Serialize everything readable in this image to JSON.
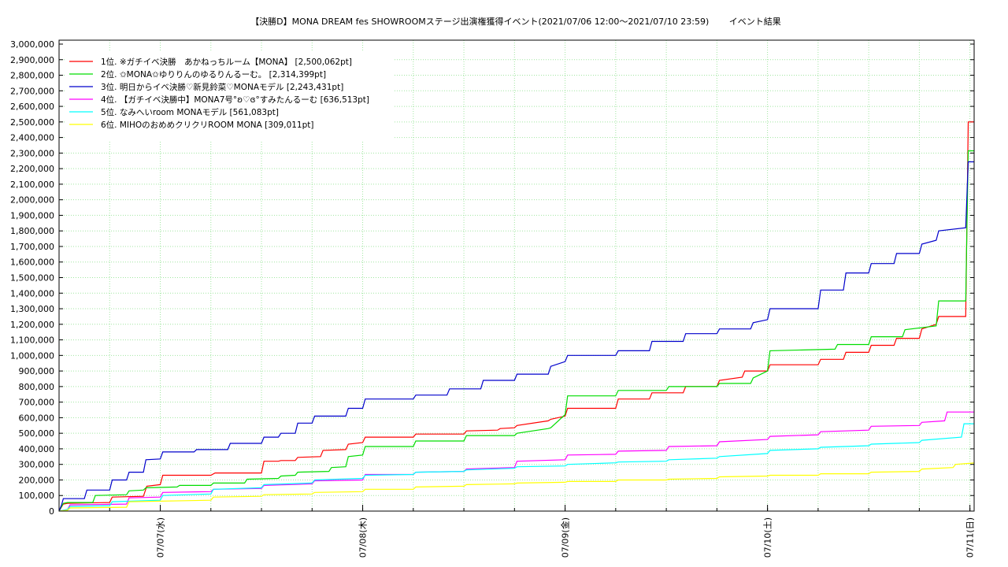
{
  "chart_data": {
    "type": "line",
    "title": "【決勝D】MONA DREAM fes SHOWROOMステージ出演権獲得イベント(2021/07/06 12:00～2021/07/10 23:59)　　 イベント結果",
    "xlabel": "",
    "ylabel": "",
    "ylim": [
      0,
      3000000
    ],
    "y_ticks": [
      "0",
      "100,000",
      "200,000",
      "300,000",
      "400,000",
      "500,000",
      "600,000",
      "700,000",
      "800,000",
      "900,000",
      "1,000,000",
      "1,100,000",
      "1,200,000",
      "1,300,000",
      "1,400,000",
      "1,500,000",
      "1,600,000",
      "1,700,000",
      "1,800,000",
      "1,900,000",
      "2,000,000",
      "2,100,000",
      "2,200,000",
      "2,300,000",
      "2,400,000",
      "2,500,000",
      "2,600,000",
      "2,700,000",
      "2,800,000",
      "2,900,000",
      "3,000,000"
    ],
    "x_range_hours": [
      12,
      120.5
    ],
    "x_ticks": [
      {
        "hour": 24,
        "label": "07/07(水)"
      },
      {
        "hour": 48,
        "label": "07/08(木)"
      },
      {
        "hour": 72,
        "label": "07/09(金)"
      },
      {
        "hour": 96,
        "label": "07/10(土)"
      },
      {
        "hour": 120,
        "label": "07/11(日)"
      }
    ],
    "grid": true,
    "legend_position": "top-left",
    "series": [
      {
        "name": "1位. ※ガチイベ決勝　あかねっちルーム【MONA】 [2,500,062pt]",
        "color": "#ff0000",
        "x": [
          12,
          12.5,
          13,
          18,
          18.3,
          22,
          22.4,
          24,
          24.3,
          30,
          30.5,
          36,
          36.3,
          38,
          38.3,
          40,
          40.3,
          43,
          43.3,
          46,
          46.3,
          48,
          48.3,
          54,
          54.3,
          60,
          60.3,
          64,
          64.3,
          66,
          66.3,
          70,
          70.3,
          72,
          72.3,
          78,
          78.3,
          82,
          82.3,
          86,
          86.3,
          90,
          90.3,
          93,
          93.3,
          96,
          96.3,
          102,
          102.3,
          105,
          105.3,
          108,
          108.3,
          111,
          111.3,
          114,
          114.3,
          116,
          116.3,
          119.5,
          119.8,
          120.5
        ],
        "y": [
          0,
          45000,
          50000,
          55000,
          90000,
          95000,
          160000,
          170000,
          230000,
          230000,
          245000,
          245000,
          320000,
          320000,
          325000,
          325000,
          345000,
          350000,
          390000,
          395000,
          430000,
          440000,
          475000,
          475000,
          495000,
          495000,
          515000,
          520000,
          530000,
          535000,
          550000,
          580000,
          590000,
          610000,
          660000,
          660000,
          720000,
          720000,
          760000,
          760000,
          800000,
          800000,
          840000,
          860000,
          900000,
          900000,
          940000,
          940000,
          975000,
          975000,
          1020000,
          1020000,
          1065000,
          1065000,
          1110000,
          1110000,
          1170000,
          1200000,
          1250000,
          1250000,
          2500062,
          2500062
        ]
      },
      {
        "name": "2位. ✩MONA✩ゆりりんのゆるりんるーむ。 [2,314,399pt]",
        "color": "#00dd00",
        "x": [
          12,
          12.5,
          13,
          16,
          16.3,
          20,
          20.3,
          22,
          22.3,
          26,
          26.3,
          30,
          30.3,
          34,
          34.3,
          38,
          38.3,
          40,
          40.3,
          44,
          44.3,
          46,
          46.3,
          48,
          48.3,
          54,
          54.3,
          60,
          60.3,
          66,
          66.3,
          70,
          70.3,
          72,
          72.3,
          78,
          78.3,
          84,
          84.3,
          90,
          90.3,
          94,
          94.3,
          96,
          96.3,
          104,
          104.3,
          108,
          108.3,
          112,
          112.3,
          116,
          116.3,
          119.5,
          119.8,
          120.5
        ],
        "y": [
          0,
          50000,
          55000,
          55000,
          100000,
          105000,
          130000,
          135000,
          150000,
          155000,
          165000,
          165000,
          180000,
          180000,
          205000,
          210000,
          225000,
          230000,
          250000,
          255000,
          280000,
          285000,
          350000,
          360000,
          415000,
          415000,
          450000,
          450000,
          485000,
          485000,
          500000,
          530000,
          535000,
          620000,
          740000,
          740000,
          775000,
          775000,
          800000,
          800000,
          820000,
          820000,
          855000,
          900000,
          1030000,
          1040000,
          1070000,
          1070000,
          1120000,
          1120000,
          1165000,
          1190000,
          1350000,
          1350000,
          2314399,
          2314399
        ]
      },
      {
        "name": "3位. 明日からイベ決勝♡新見鈴菜♡MONAモデル [2,243,431pt]",
        "color": "#0000cc",
        "x": [
          12,
          12.3,
          12.5,
          15,
          15.3,
          18,
          18.3,
          20,
          20.3,
          22,
          22.3,
          24,
          24.3,
          28,
          28.3,
          32,
          32.3,
          36,
          36.3,
          38,
          38.3,
          40,
          40.3,
          42,
          42.3,
          46,
          46.3,
          48,
          48.3,
          54,
          54.3,
          58,
          58.3,
          62,
          62.3,
          66,
          66.3,
          70,
          70.3,
          72,
          72.3,
          78,
          78.3,
          82,
          82.3,
          86,
          86.3,
          90,
          90.3,
          94,
          94.3,
          96,
          96.3,
          102,
          102.3,
          105,
          105.3,
          108,
          108.3,
          111,
          111.3,
          114,
          114.3,
          116,
          116.3,
          119.5,
          119.8,
          120.5
        ],
        "y": [
          0,
          40000,
          80000,
          80000,
          135000,
          135000,
          200000,
          200000,
          250000,
          250000,
          330000,
          335000,
          380000,
          380000,
          395000,
          395000,
          435000,
          435000,
          475000,
          475000,
          500000,
          500000,
          565000,
          565000,
          610000,
          610000,
          660000,
          660000,
          720000,
          720000,
          745000,
          745000,
          785000,
          785000,
          840000,
          840000,
          880000,
          880000,
          930000,
          960000,
          1000000,
          1000000,
          1030000,
          1030000,
          1090000,
          1090000,
          1140000,
          1140000,
          1170000,
          1170000,
          1210000,
          1230000,
          1300000,
          1300000,
          1420000,
          1420000,
          1530000,
          1530000,
          1590000,
          1590000,
          1655000,
          1655000,
          1715000,
          1740000,
          1800000,
          1820000,
          2243431,
          2243431
        ]
      },
      {
        "name": "4位. 【ガチイベ決勝中】MONA7号°ʚ♡ɞ°すみたんるーむ [636,513pt]",
        "color": "#ff00ff",
        "x": [
          12,
          13,
          13.3,
          20,
          20.3,
          24,
          24.3,
          30,
          30.3,
          36,
          36.3,
          42,
          42.3,
          48,
          48.3,
          54,
          54.3,
          60,
          60.3,
          66,
          66.3,
          72,
          72.3,
          78,
          78.3,
          84,
          84.3,
          90,
          90.3,
          96,
          96.3,
          102,
          102.3,
          108,
          108.3,
          114,
          114.3,
          117,
          117.3,
          120.5
        ],
        "y": [
          0,
          10000,
          40000,
          45000,
          85000,
          90000,
          120000,
          125000,
          140000,
          145000,
          165000,
          175000,
          195000,
          200000,
          235000,
          235000,
          250000,
          255000,
          270000,
          280000,
          320000,
          330000,
          360000,
          365000,
          385000,
          390000,
          415000,
          420000,
          445000,
          460000,
          480000,
          490000,
          510000,
          520000,
          545000,
          550000,
          570000,
          580000,
          636513,
          636513
        ]
      },
      {
        "name": "5位. なみへいroom MONAモデル [561,083pt]",
        "color": "#00ffff",
        "x": [
          12,
          13,
          13.3,
          18,
          18.3,
          24,
          24.3,
          30,
          30.3,
          36,
          36.3,
          42,
          42.3,
          48,
          48.3,
          54,
          54.3,
          60,
          60.3,
          66,
          66.3,
          72,
          72.3,
          78,
          78.3,
          84,
          84.3,
          90,
          90.3,
          96,
          96.3,
          102,
          102.3,
          108,
          108.3,
          114,
          114.3,
          119,
          119.3,
          120.5
        ],
        "y": [
          0,
          10000,
          30000,
          35000,
          60000,
          70000,
          100000,
          110000,
          140000,
          150000,
          170000,
          180000,
          200000,
          210000,
          230000,
          235000,
          250000,
          255000,
          265000,
          275000,
          285000,
          290000,
          300000,
          310000,
          315000,
          320000,
          330000,
          340000,
          350000,
          370000,
          390000,
          400000,
          410000,
          420000,
          430000,
          440000,
          455000,
          475000,
          561083,
          561083
        ]
      },
      {
        "name": "6位. MIHOのおめめクリクリROOM MONA [309,011pt]",
        "color": "#ffff00",
        "x": [
          12,
          13,
          13.3,
          20,
          20.3,
          30,
          30.3,
          36,
          36.3,
          42,
          42.3,
          48,
          48.3,
          54,
          54.3,
          60,
          60.3,
          66,
          66.3,
          72,
          72.3,
          78,
          78.3,
          84,
          84.3,
          90,
          90.3,
          96,
          96.3,
          102,
          102.3,
          108,
          108.3,
          114,
          114.3,
          118,
          118.3,
          120.5
        ],
        "y": [
          0,
          5000,
          20000,
          25000,
          60000,
          70000,
          90000,
          95000,
          105000,
          110000,
          120000,
          125000,
          140000,
          140000,
          155000,
          160000,
          170000,
          175000,
          180000,
          185000,
          190000,
          190000,
          200000,
          200000,
          205000,
          210000,
          220000,
          225000,
          230000,
          230000,
          240000,
          240000,
          250000,
          255000,
          270000,
          280000,
          300000,
          309011
        ]
      }
    ]
  }
}
